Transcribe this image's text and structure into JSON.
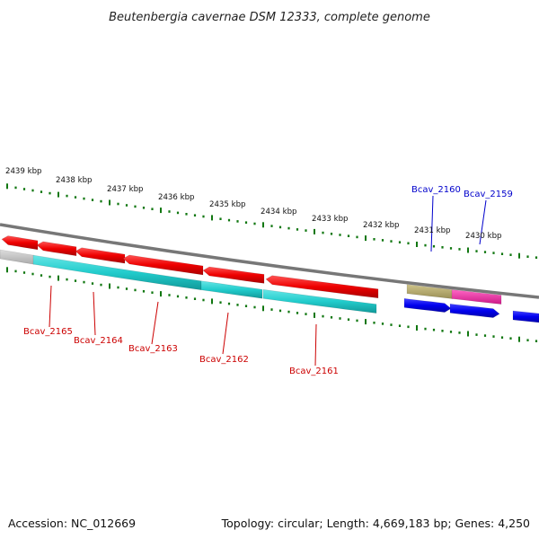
{
  "title": "Beutenbergia cavernae DSM 12333, complete genome",
  "footer": {
    "accession": "Accession: NC_012669",
    "summary": "Topology: circular; Length: 4,669,183 bp; Genes: 4,250"
  },
  "scale_labels": [
    "2439 kbp",
    "2438 kbp",
    "2437 kbp",
    "2436 kbp",
    "2435 kbp",
    "2434 kbp",
    "2433 kbp",
    "2432 kbp",
    "2431 kbp",
    "2430 kbp"
  ],
  "gene_labels": {
    "bcav_2165": "Bcav_2165",
    "bcav_2164": "Bcav_2164",
    "bcav_2163": "Bcav_2163",
    "bcav_2162": "Bcav_2162",
    "bcav_2161": "Bcav_2161",
    "bcav_2160": "Bcav_2160",
    "bcav_2159": "Bcav_2159"
  },
  "colors": {
    "cds": "#ee0000",
    "cds_label": "#cc0000",
    "gene": "#22cccc",
    "gene_other": "#0000ee",
    "gene_other_label": "#0000cc",
    "olive_feature": "#b3a86a",
    "magenta_feature": "#ee2aa0",
    "grey_feature": "#c8c8c8",
    "backbone": "#777777",
    "ticks": "#117711"
  }
}
